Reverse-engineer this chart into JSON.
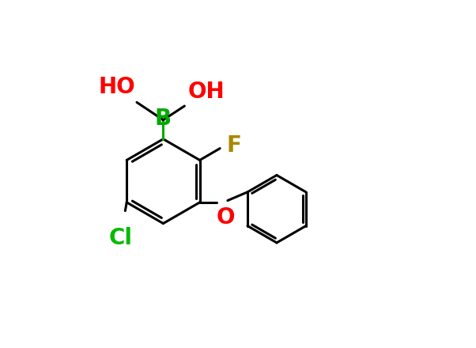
{
  "background": "#ffffff",
  "bond_color": "#000000",
  "bond_width": 2.2,
  "atom_colors": {
    "B": "#00aa00",
    "HO": "#ff0000",
    "O": "#ff0000",
    "F": "#aa8800",
    "Cl": "#00bb00"
  },
  "fig_width": 6.02,
  "fig_height": 4.4,
  "dpi": 100,
  "xlim": [
    0,
    10
  ],
  "ylim": [
    0,
    7.3
  ]
}
